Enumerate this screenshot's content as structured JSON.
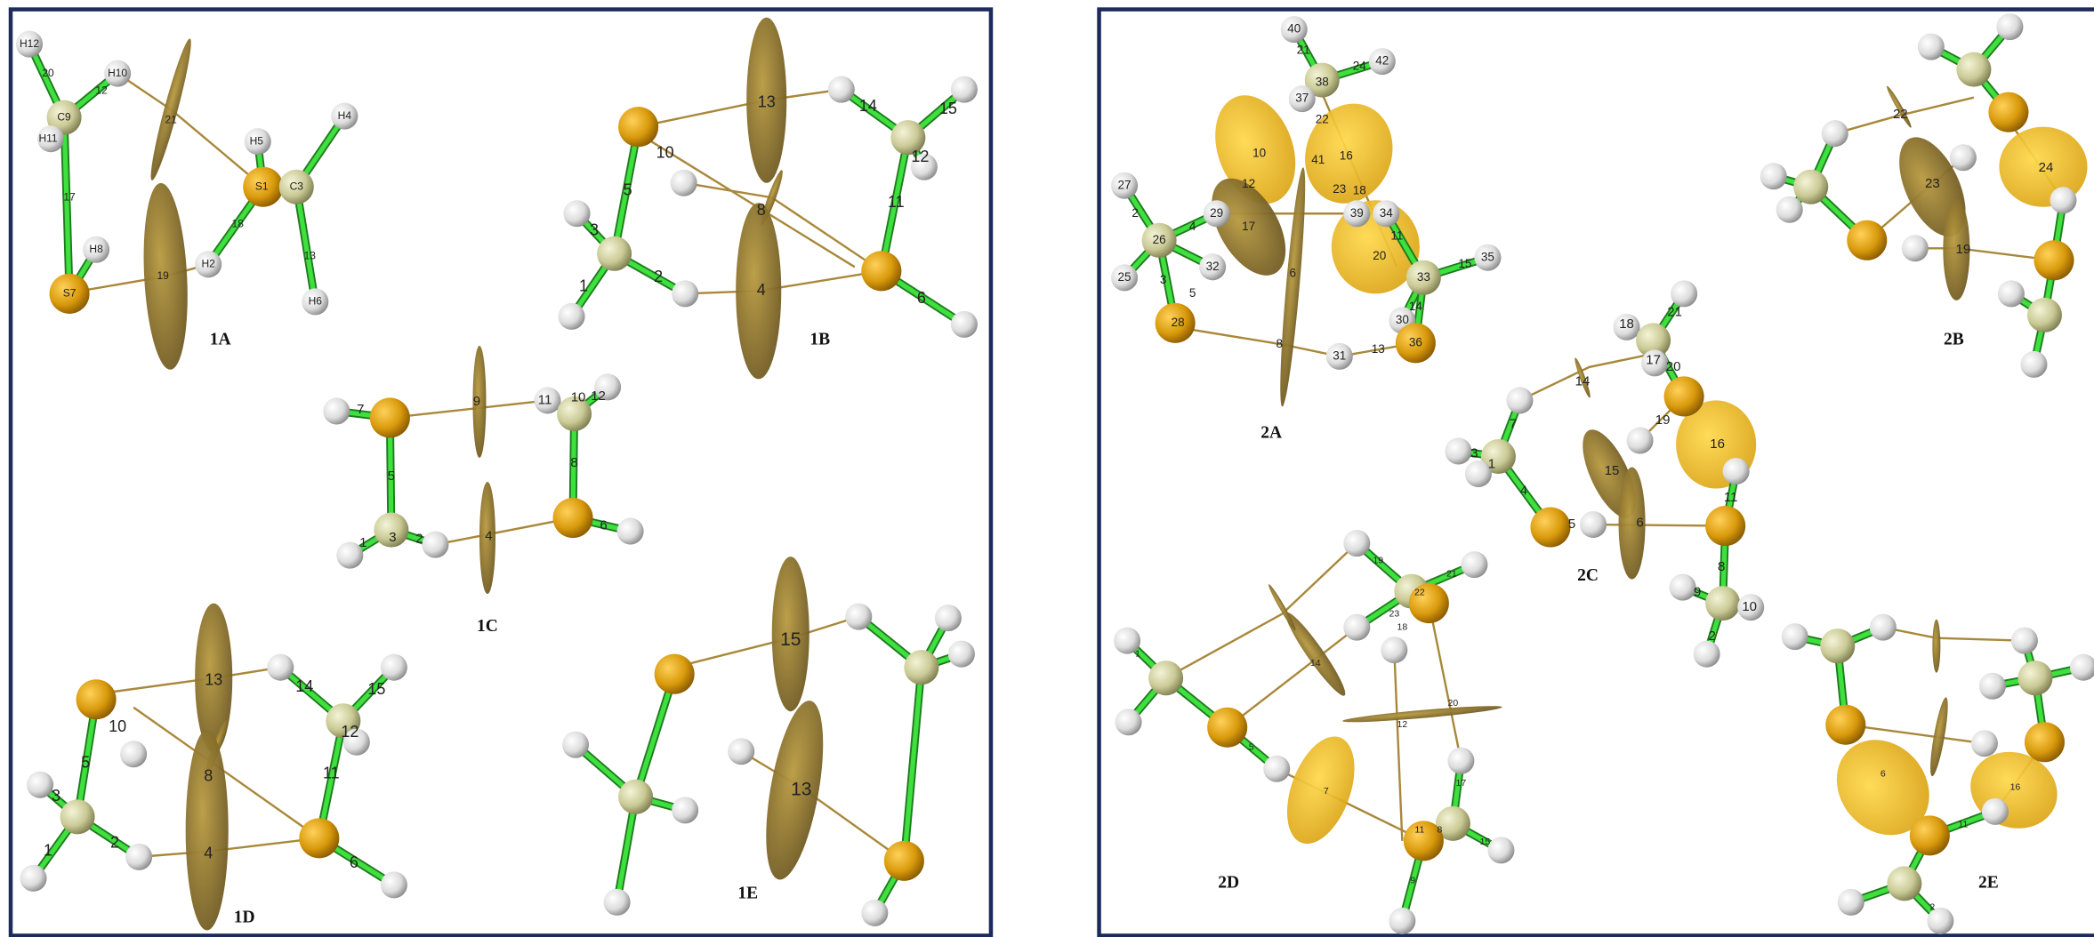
{
  "panels": [
    {
      "label": "1A",
      "texts": [
        "H12",
        "C9",
        "H10",
        "H11",
        "S7",
        "H8",
        "H2",
        "S1",
        "H5",
        "C3",
        "H4",
        "H6",
        "21",
        "19",
        "20",
        "12",
        "17",
        "18",
        "13"
      ]
    },
    {
      "label": "1B",
      "texts": [
        "13",
        "8",
        "4",
        "5",
        "3",
        "1",
        "2",
        "10",
        "14",
        "15",
        "12",
        "11",
        "6"
      ]
    },
    {
      "label": "1C",
      "texts": [
        "7",
        "5",
        "9",
        "11",
        "10",
        "12",
        "8",
        "6",
        "1",
        "3",
        "2",
        "4"
      ]
    },
    {
      "label": "1D",
      "texts": [
        "13",
        "8",
        "4",
        "5",
        "3",
        "1",
        "2",
        "10",
        "14",
        "15",
        "12",
        "11",
        "6"
      ]
    },
    {
      "label": "1E",
      "texts": [
        "15",
        "13"
      ]
    },
    {
      "label": "2A",
      "texts": [
        "40",
        "38",
        "37",
        "42",
        "24",
        "21",
        "22",
        "10",
        "41",
        "16",
        "12",
        "23",
        "18",
        "39",
        "34",
        "17",
        "29",
        "27",
        "26",
        "25",
        "32",
        "28",
        "20",
        "11",
        "33",
        "15",
        "35",
        "30",
        "36",
        "31",
        "13",
        "8",
        "6",
        "2",
        "5",
        "4",
        "3",
        "14"
      ]
    },
    {
      "label": "2B",
      "texts": [
        "22",
        "23",
        "19",
        "24"
      ]
    },
    {
      "label": "2C",
      "texts": [
        "18",
        "21",
        "17",
        "20",
        "14",
        "19",
        "16",
        "7",
        "3",
        "1",
        "4",
        "5",
        "15",
        "6",
        "11",
        "8",
        "9",
        "10",
        "2"
      ]
    },
    {
      "label": "2D",
      "texts": [
        "19",
        "22",
        "21",
        "23",
        "18",
        "14",
        "12",
        "20",
        "7",
        "17",
        "11",
        "8",
        "15",
        "9",
        "1",
        "5"
      ]
    },
    {
      "label": "2E",
      "texts": [
        "6",
        "16",
        "11",
        "2"
      ]
    }
  ]
}
